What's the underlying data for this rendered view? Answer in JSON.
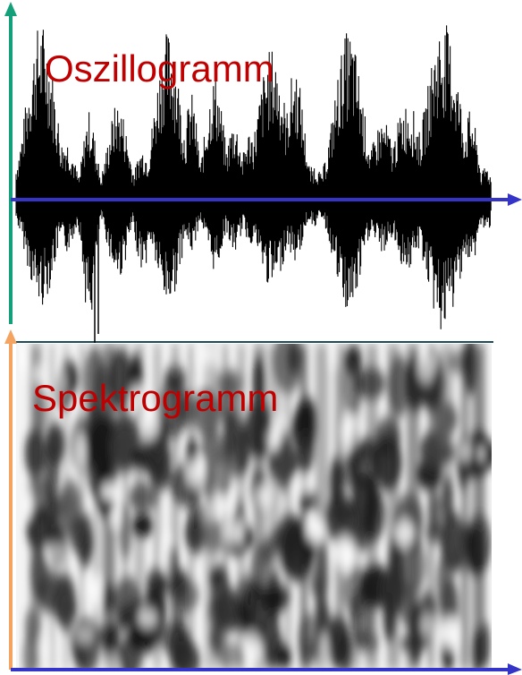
{
  "labels": {
    "oscillogram": "Oszillogramm",
    "spectrogram": "Spektrogramm"
  },
  "colors": {
    "label_red": "#c00000",
    "time_axis": "#3434c8",
    "osc_amplitude_axis": "#14a07a",
    "spec_frequency_axis": "#f4a460",
    "waveform": "#000000",
    "divider": "#1f4e5a"
  },
  "icons": {
    "axis_heads": "arrow-head-icon"
  }
}
